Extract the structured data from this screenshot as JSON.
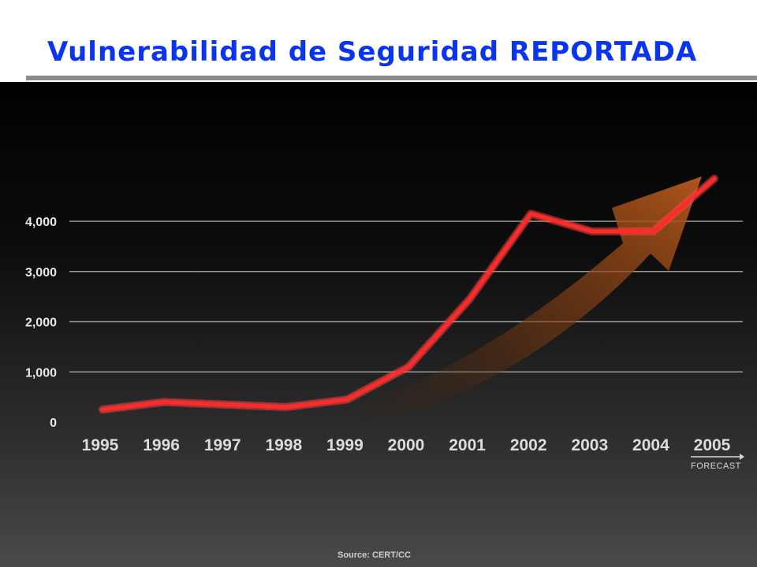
{
  "title": "Vulnerabilidad de Seguridad REPORTADA",
  "source_note": "Source: CERT/CC",
  "forecast_label": "FORECAST",
  "colors": {
    "title": "#0a35f0",
    "line": "#ff2a2a",
    "arrow": "#b85a1c",
    "grid": "#9a9a9a",
    "background_top": "#000000",
    "background_bottom": "#4a4a4a"
  },
  "chart_data": {
    "type": "line",
    "title": "Vulnerabilidad de Seguridad REPORTADA",
    "x": [
      "1995",
      "1996",
      "1997",
      "1998",
      "1999",
      "2000",
      "2001",
      "2002",
      "2003",
      "2004",
      "2005"
    ],
    "y_ticks": [
      0,
      1000,
      2000,
      3000,
      4000
    ],
    "y_tick_labels": [
      "0",
      "1,000",
      "2,000",
      "3,000",
      "4,000"
    ],
    "ylim": [
      0,
      4000
    ],
    "grid": true,
    "legend": "none",
    "series": [
      {
        "values": [
          250,
          400,
          350,
          300,
          450,
          1100,
          2450,
          4150,
          3800,
          3800,
          4850
        ]
      }
    ],
    "annotations": [
      "FORECAST",
      "Source: CERT/CC"
    ]
  }
}
